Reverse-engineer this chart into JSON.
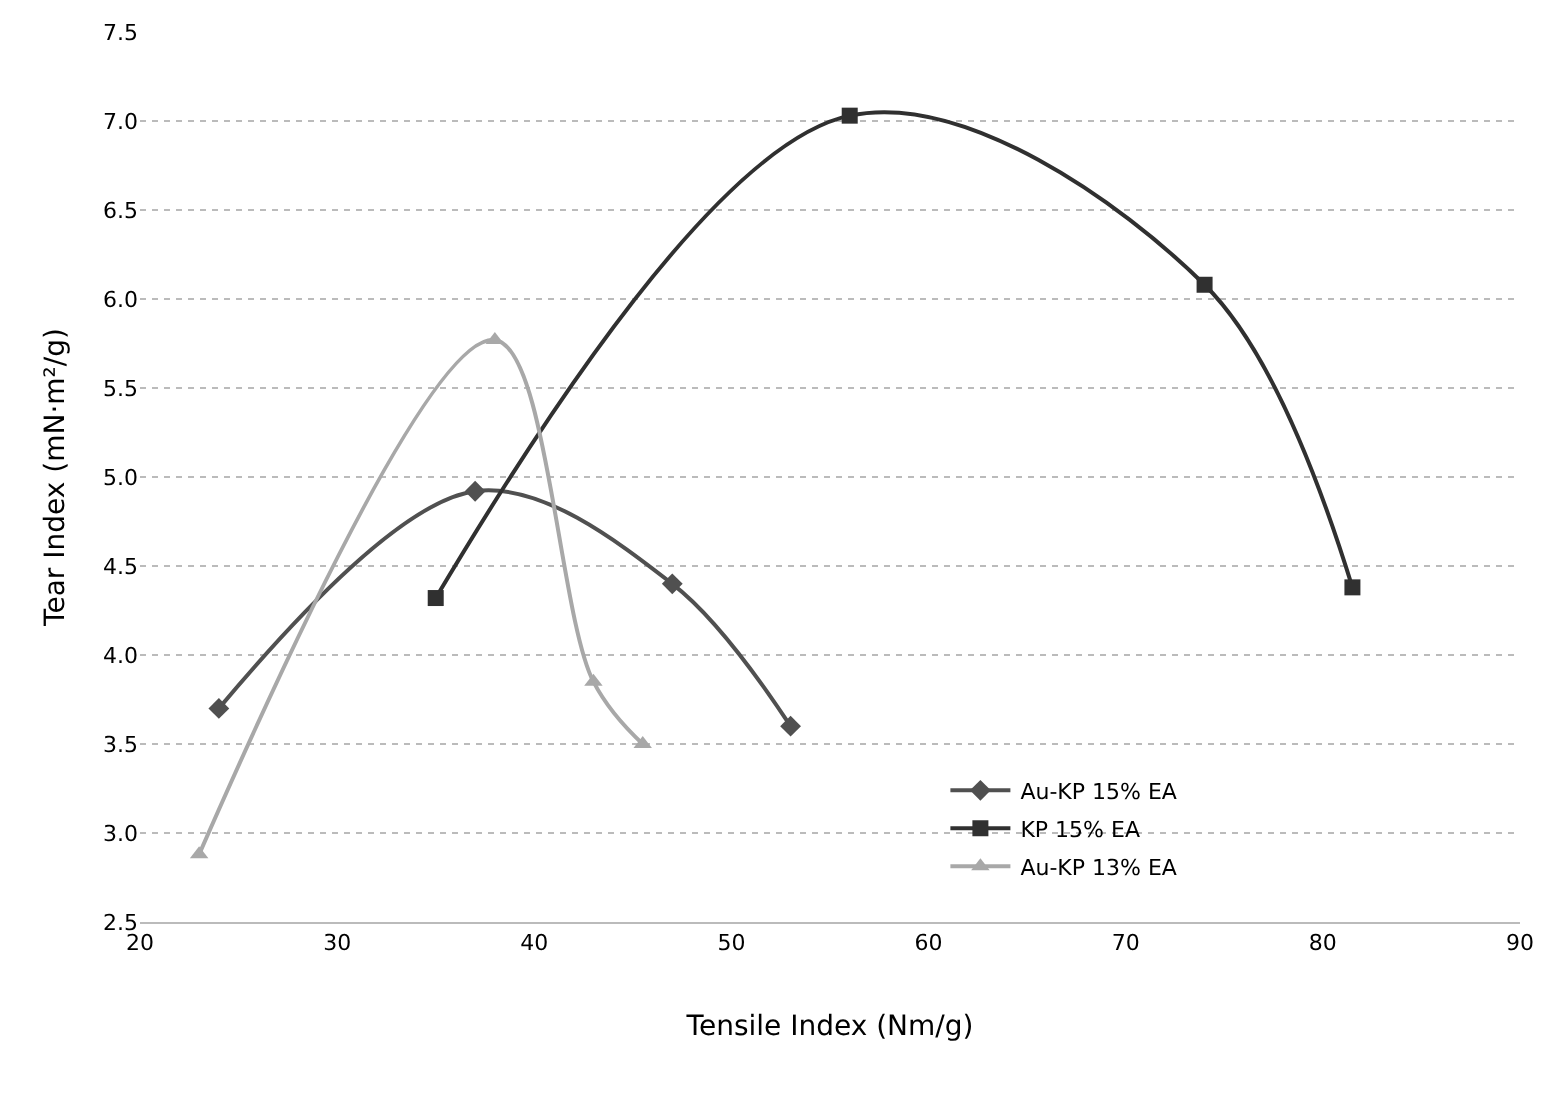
{
  "chart_data": {
    "type": "line",
    "xlabel": "Tensile Index (Nm/g)",
    "ylabel": "Tear Index (mN·m²/g)",
    "xlim": [
      20,
      90
    ],
    "xticks": [
      20,
      30,
      40,
      50,
      60,
      70,
      80,
      90
    ],
    "ylim": [
      2.5,
      7.5
    ],
    "yticks": [
      {
        "value": 2.5,
        "label": "2.5"
      },
      {
        "value": 3,
        "label": "3.0"
      },
      {
        "value": 3.5,
        "label": "3.5"
      },
      {
        "value": 4,
        "label": "4.0"
      },
      {
        "value": 4.5,
        "label": "4.5"
      },
      {
        "value": 5,
        "label": "5.0"
      },
      {
        "value": 5.5,
        "label": "5.5"
      },
      {
        "value": 6,
        "label": "6.0"
      },
      {
        "value": 6.5,
        "label": "6.5"
      },
      {
        "value": 7,
        "label": "7.0"
      },
      {
        "value": 7.5,
        "label": "7.5"
      }
    ],
    "grid": "y",
    "legend": "bottom right",
    "series": [
      {
        "name": "Au-KP 15% EA",
        "color": "#505050",
        "marker": "diamond",
        "x": [
          24,
          37,
          47,
          53
        ],
        "values": [
          3.7,
          4.92,
          4.4,
          3.6
        ]
      },
      {
        "name": "KP 15% EA",
        "color": "#303030",
        "marker": "square",
        "x": [
          35,
          56,
          74,
          81.5
        ],
        "values": [
          4.32,
          7.03,
          6.08,
          4.38
        ]
      },
      {
        "name": "Au-KP 13% EA",
        "color": "#a8a8a8",
        "marker": "triangle",
        "x": [
          23,
          38,
          43,
          45.5
        ],
        "values": [
          2.88,
          5.77,
          3.85,
          3.5
        ]
      }
    ]
  }
}
